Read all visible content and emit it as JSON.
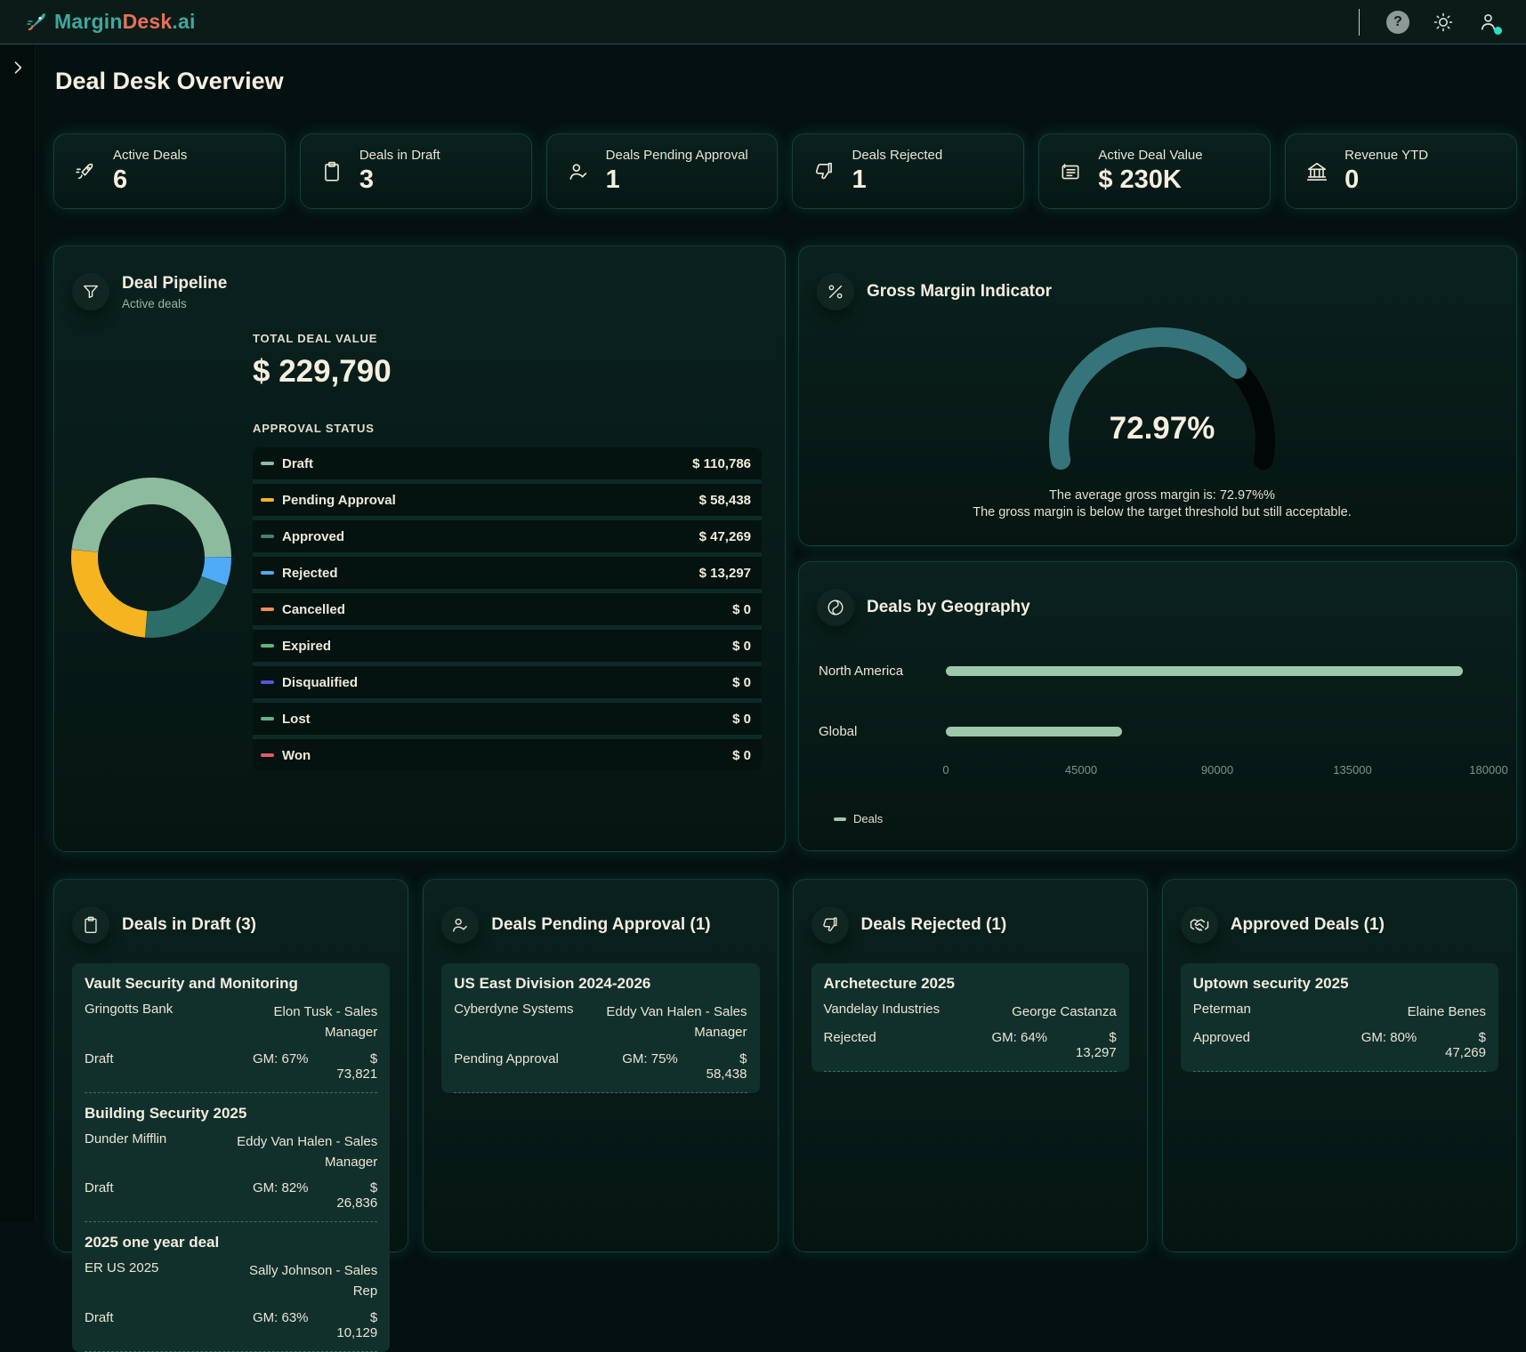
{
  "topbar": {
    "logo_part1": "Margin",
    "logo_part2": "Desk",
    "logo_part3": ".ai",
    "help_glyph": "?"
  },
  "page_title": "Deal Desk Overview",
  "kpis": [
    {
      "label": "Active Deals",
      "value": "6",
      "icon": "rocket"
    },
    {
      "label": "Deals in Draft",
      "value": "3",
      "icon": "clipboard"
    },
    {
      "label": "Deals Pending Approval",
      "value": "1",
      "icon": "user-check"
    },
    {
      "label": "Deals Rejected",
      "value": "1",
      "icon": "thumbs-down"
    },
    {
      "label": "Active Deal Value",
      "value": "$ 230K",
      "icon": "invoice"
    },
    {
      "label": "Revenue YTD",
      "value": "0",
      "icon": "bank"
    }
  ],
  "pipeline": {
    "title": "Deal Pipeline",
    "subtitle": "Active deals",
    "total_label": "TOTAL DEAL VALUE",
    "total_value": "$ 229,790",
    "status_label": "APPROVAL STATUS",
    "statuses": [
      {
        "label": "Draft",
        "value": "$ 110,786",
        "color": "#8dbb9e"
      },
      {
        "label": "Pending Approval",
        "value": "$ 58,438",
        "color": "#f2b02c"
      },
      {
        "label": "Approved",
        "value": "$ 47,269",
        "color": "#44816f"
      },
      {
        "label": "Rejected",
        "value": "$ 13,297",
        "color": "#54aaee"
      },
      {
        "label": "Cancelled",
        "value": "$ 0",
        "color": "#ee8d55"
      },
      {
        "label": "Expired",
        "value": "$ 0",
        "color": "#57b97b"
      },
      {
        "label": "Disqualified",
        "value": "$ 0",
        "color": "#5357d8"
      },
      {
        "label": "Lost",
        "value": "$ 0",
        "color": "#6aae84"
      },
      {
        "label": "Won",
        "value": "$ 0",
        "color": "#e25c68"
      }
    ]
  },
  "gross_margin": {
    "title": "Gross Margin Indicator",
    "value_label": "72.97%",
    "line1": "The average gross margin is: 72.97%%",
    "line2": "The gross margin is below the target threshold but still acceptable."
  },
  "geography": {
    "title": "Deals by Geography",
    "legend": "Deals",
    "row_labels": [
      "North America",
      "Global"
    ],
    "axis_ticks": [
      "0",
      "45000",
      "90000",
      "135000",
      "180000"
    ]
  },
  "deal_cards": [
    {
      "title": "Deals in Draft (3)",
      "icon": "clipboard",
      "deals": [
        {
          "name": "Vault Security and Monitoring",
          "company": "Gringotts Bank",
          "owner": "Elon Tusk - Sales Manager",
          "status": "Draft",
          "gm": "GM: 67%",
          "value": "$ 73,821"
        },
        {
          "name": "Building Security 2025",
          "company": "Dunder Mifflin",
          "owner": "Eddy Van Halen - Sales Manager",
          "status": "Draft",
          "gm": "GM: 82%",
          "value": "$ 26,836"
        },
        {
          "name": "2025 one year deal",
          "company": "ER US 2025",
          "owner": "Sally Johnson - Sales Rep",
          "status": "Draft",
          "gm": "GM: 63%",
          "value": "$ 10,129"
        }
      ]
    },
    {
      "title": "Deals Pending Approval (1)",
      "icon": "user-check",
      "deals": [
        {
          "name": "US East Division 2024-2026",
          "company": "Cyberdyne Systems",
          "owner": "Eddy Van Halen - Sales Manager",
          "status": "Pending Approval",
          "gm": "GM: 75%",
          "value": "$ 58,438"
        }
      ]
    },
    {
      "title": "Deals Rejected (1)",
      "icon": "thumbs-down",
      "deals": [
        {
          "name": "Archetecture 2025",
          "company": "Vandelay Industries",
          "owner": "George Castanza",
          "status": "Rejected",
          "gm": "GM: 64%",
          "value": "$ 13,297"
        }
      ]
    },
    {
      "title": "Approved Deals (1)",
      "icon": "handshake",
      "deals": [
        {
          "name": "Uptown security 2025",
          "company": "Peterman",
          "owner": "Elaine Benes",
          "status": "Approved",
          "gm": "GM: 80%",
          "value": "$ 47,269"
        }
      ]
    }
  ],
  "chart_data": [
    {
      "id": "pipeline-donut",
      "type": "pie",
      "title": "Deal Pipeline by approval status",
      "start_angle": 276,
      "segments": [
        {
          "label": "Draft",
          "value": 110786,
          "color": "#8dbb9e"
        },
        {
          "label": "Rejected",
          "value": 13297,
          "color": "#4fabf7"
        },
        {
          "label": "Approved",
          "value": 47269,
          "color": "#2c6e67"
        },
        {
          "label": "Pending Approval",
          "value": 58438,
          "color": "#f6b421"
        }
      ]
    },
    {
      "id": "gross-margin-gauge",
      "type": "gauge",
      "percent": 72.97,
      "start_angle": 259,
      "sweep": 202,
      "color": "#35747a",
      "track_color": "#010606",
      "label": "72.97%"
    },
    {
      "id": "geo-bars",
      "type": "bar",
      "orientation": "horizontal",
      "categories": [
        "North America",
        "Global"
      ],
      "values": [
        171352,
        58438
      ],
      "xmax": 180000,
      "xticks": [
        0,
        45000,
        90000,
        135000,
        180000
      ],
      "color": "#9dc8ab",
      "series_name": "Deals"
    }
  ]
}
